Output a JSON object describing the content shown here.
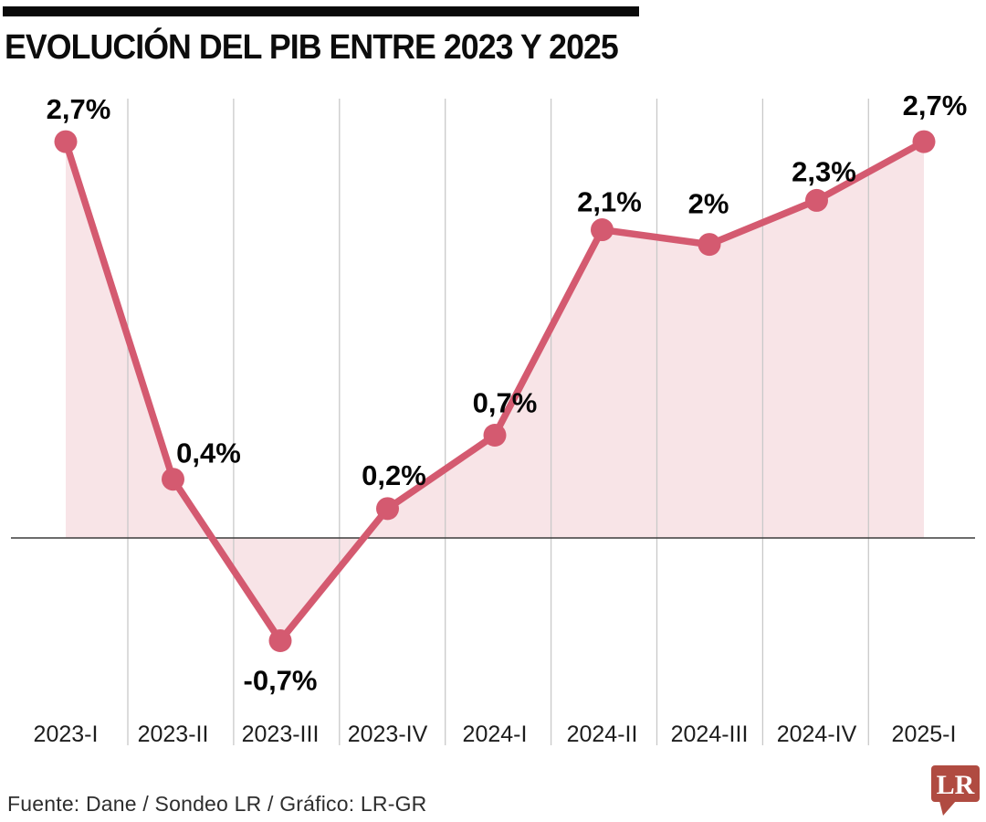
{
  "header": {
    "title": "EVOLUCIÓN DEL PIB ENTRE 2023 Y 2025"
  },
  "footer": {
    "source": "Fuente: Dane / Sondeo LR / Gráfico: LR-GR",
    "logo_text": "LR"
  },
  "chart_data": {
    "type": "line",
    "title": "EVOLUCIÓN DEL PIB ENTRE 2023 Y 2025",
    "categories": [
      "2023-I",
      "2023-II",
      "2023-III",
      "2023-IV",
      "2024-I",
      "2024-II",
      "2024-III",
      "2024-IV",
      "2025-I"
    ],
    "values": [
      2.7,
      0.4,
      -0.7,
      0.2,
      0.7,
      2.1,
      2.0,
      2.3,
      2.7
    ],
    "point_labels": [
      "2,7%",
      "0,4%",
      "-0,7%",
      "0,2%",
      "0,7%",
      "2,1%",
      "2%",
      "2,3%",
      "2,7%"
    ],
    "unit": "%",
    "ylabel": "",
    "xlabel": "",
    "ylim": [
      -1.3,
      3.1
    ],
    "grid": "vertical-only",
    "zero_line": true,
    "area_fill": true,
    "legend": "none",
    "colors": {
      "line": "#d45a70",
      "marker": "#d45a70",
      "area_fill": "#f8e4e7",
      "gridline": "#c9c9c9",
      "zero_line": "#3c3c3c",
      "point_label": "#050505",
      "x_label": "#1d1d1d",
      "title_bar": "#0a0a0a",
      "logo_bg": "#b04b41",
      "logo_text": "#ffffff"
    }
  }
}
